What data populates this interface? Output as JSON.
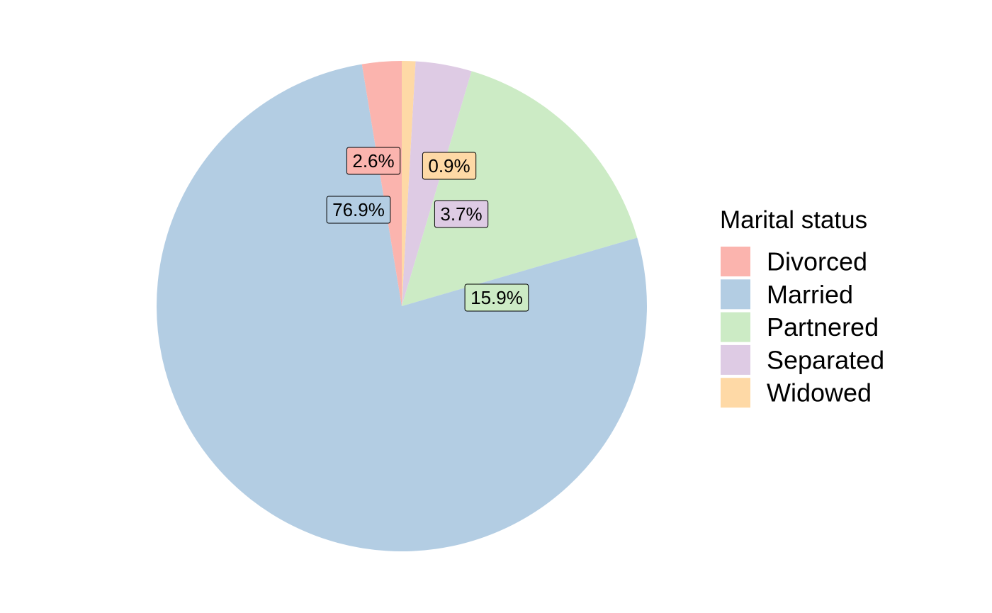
{
  "chart_data": {
    "type": "pie",
    "title": "",
    "legend_title": "Marital status",
    "legend_position": "right",
    "categories": [
      "Divorced",
      "Married",
      "Partnered",
      "Separated",
      "Widowed"
    ],
    "values": [
      2.6,
      76.9,
      15.9,
      3.7,
      0.9
    ],
    "labels": [
      "2.6%",
      "76.9%",
      "15.9%",
      "3.7%",
      "0.9%"
    ],
    "colors": [
      "#FBB4AE",
      "#B3CDE3",
      "#CCEBC5",
      "#DECBE4",
      "#FED9A6"
    ],
    "draw_order": [
      "Widowed",
      "Separated",
      "Partnered",
      "Married",
      "Divorced"
    ],
    "direction": "clockwise",
    "start": "top"
  }
}
